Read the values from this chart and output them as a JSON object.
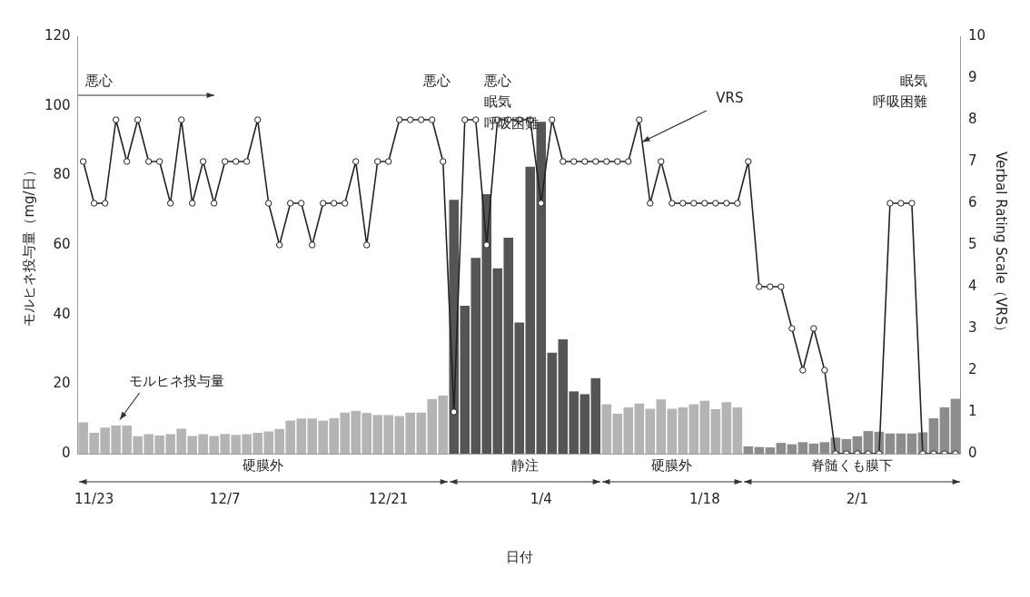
{
  "chart_data": {
    "type": "bar",
    "xlabel": "日付",
    "ylabel": "モルヒネ投与量（mg/日）",
    "y2label": "Verbal Rating Scale（VRS）",
    "categories": [
      null,
      "11/23",
      null,
      null,
      null,
      null,
      null,
      null,
      null,
      null,
      null,
      null,
      null,
      "12/7",
      null,
      null,
      null,
      null,
      null,
      null,
      null,
      null,
      null,
      null,
      null,
      null,
      null,
      null,
      "12/21",
      null,
      null,
      null,
      null,
      null,
      null,
      null,
      null,
      null,
      null,
      null,
      null,
      null,
      "1/4",
      null,
      null,
      null,
      null,
      null,
      null,
      null,
      null,
      null,
      null,
      null,
      null,
      null,
      null,
      "1/18",
      null,
      null,
      null,
      null,
      null,
      null,
      null,
      null,
      null,
      null,
      null,
      null,
      null,
      "2/1",
      null,
      null,
      null,
      null,
      null,
      null,
      null,
      null,
      null
    ],
    "series": [
      {
        "name": "モルヒネ投与量",
        "values": [
          9.0,
          6.0,
          7.5,
          8.1,
          8.1,
          5.0,
          5.6,
          5.2,
          5.6,
          7.2,
          5.1,
          5.6,
          5.1,
          5.7,
          5.4,
          5.6,
          6.0,
          6.4,
          7.1,
          9.5,
          10.1,
          10.1,
          9.5,
          10.2,
          11.8,
          12.3,
          11.7,
          11.1,
          11.1,
          10.8,
          11.8,
          11.8,
          15.7,
          16.7,
          73.0,
          42.5,
          56.3,
          74.6,
          53.3,
          62.1,
          37.7,
          82.5,
          95.4,
          29.0,
          32.9,
          17.9,
          17.1,
          21.7,
          14.2,
          11.5,
          13.3,
          14.4,
          12.9,
          15.6,
          12.9,
          13.3,
          14.2,
          15.2,
          12.8,
          14.8,
          13.3,
          2.1,
          1.9,
          1.8,
          3.1,
          2.7,
          3.3,
          2.9,
          3.3,
          4.6,
          4.2,
          5.0,
          6.5,
          6.3,
          5.8,
          5.8,
          5.8,
          6.1,
          10.2,
          13.3,
          15.8
        ],
        "colors": [
          "#b4b4b4",
          "#b4b4b4",
          "#b4b4b4",
          "#b4b4b4",
          "#b4b4b4",
          "#b4b4b4",
          "#b4b4b4",
          "#b4b4b4",
          "#b4b4b4",
          "#b4b4b4",
          "#b4b4b4",
          "#b4b4b4",
          "#b4b4b4",
          "#b4b4b4",
          "#b4b4b4",
          "#b4b4b4",
          "#b4b4b4",
          "#b4b4b4",
          "#b4b4b4",
          "#b4b4b4",
          "#b4b4b4",
          "#b4b4b4",
          "#b4b4b4",
          "#b4b4b4",
          "#b4b4b4",
          "#b4b4b4",
          "#b4b4b4",
          "#b4b4b4",
          "#b4b4b4",
          "#b4b4b4",
          "#b4b4b4",
          "#b4b4b4",
          "#b4b4b4",
          "#b4b4b4",
          "#555555",
          "#555555",
          "#555555",
          "#555555",
          "#555555",
          "#555555",
          "#555555",
          "#555555",
          "#555555",
          "#555555",
          "#555555",
          "#555555",
          "#555555",
          "#555555",
          "#b4b4b4",
          "#b4b4b4",
          "#b4b4b4",
          "#b4b4b4",
          "#b4b4b4",
          "#b4b4b4",
          "#b4b4b4",
          "#b4b4b4",
          "#b4b4b4",
          "#b4b4b4",
          "#b4b4b4",
          "#b4b4b4",
          "#b4b4b4",
          "#8c8c8c",
          "#8c8c8c",
          "#8c8c8c",
          "#8c8c8c",
          "#8c8c8c",
          "#8c8c8c",
          "#8c8c8c",
          "#8c8c8c",
          "#8c8c8c",
          "#8c8c8c",
          "#8c8c8c",
          "#8c8c8c",
          "#8c8c8c",
          "#8c8c8c",
          "#8c8c8c",
          "#8c8c8c",
          "#8c8c8c",
          "#8c8c8c",
          "#8c8c8c",
          "#8c8c8c"
        ]
      },
      {
        "type": "line",
        "name": "VRS",
        "axis": "y2",
        "color": "#222222",
        "marker": "circle",
        "values": [
          7,
          6,
          6,
          8,
          7,
          8,
          7,
          7,
          6,
          8,
          6,
          7,
          6,
          7,
          7,
          7,
          8,
          6,
          5,
          6,
          6,
          5,
          6,
          6,
          6,
          7,
          5,
          7,
          7,
          8,
          8,
          8,
          8,
          7,
          1,
          8,
          8,
          5,
          8,
          8,
          8,
          8,
          6,
          8,
          7,
          7,
          7,
          7,
          7,
          7,
          7,
          8,
          6,
          7,
          6,
          6,
          6,
          6,
          6,
          6,
          6,
          7,
          4,
          4,
          4,
          3,
          2,
          3,
          2,
          0,
          0,
          0,
          0,
          0,
          6,
          6,
          6,
          0,
          0,
          0,
          0
        ]
      }
    ],
    "ylim": [
      0,
      120
    ],
    "yticks": [
      0,
      20,
      40,
      60,
      80,
      100,
      120
    ],
    "y2lim": [
      0,
      10
    ],
    "y2ticks": [
      0,
      1,
      2,
      3,
      4,
      5,
      6,
      7,
      8,
      9,
      10
    ],
    "annotations": [
      "悪心",
      "悪心",
      "悪心",
      "眠気",
      "呼吸困難",
      "眠気",
      "呼吸困難",
      "硬膜外",
      "静注",
      "硬膜外",
      "脊髄くも膜下"
    ],
    "legend": false,
    "grid": false
  }
}
